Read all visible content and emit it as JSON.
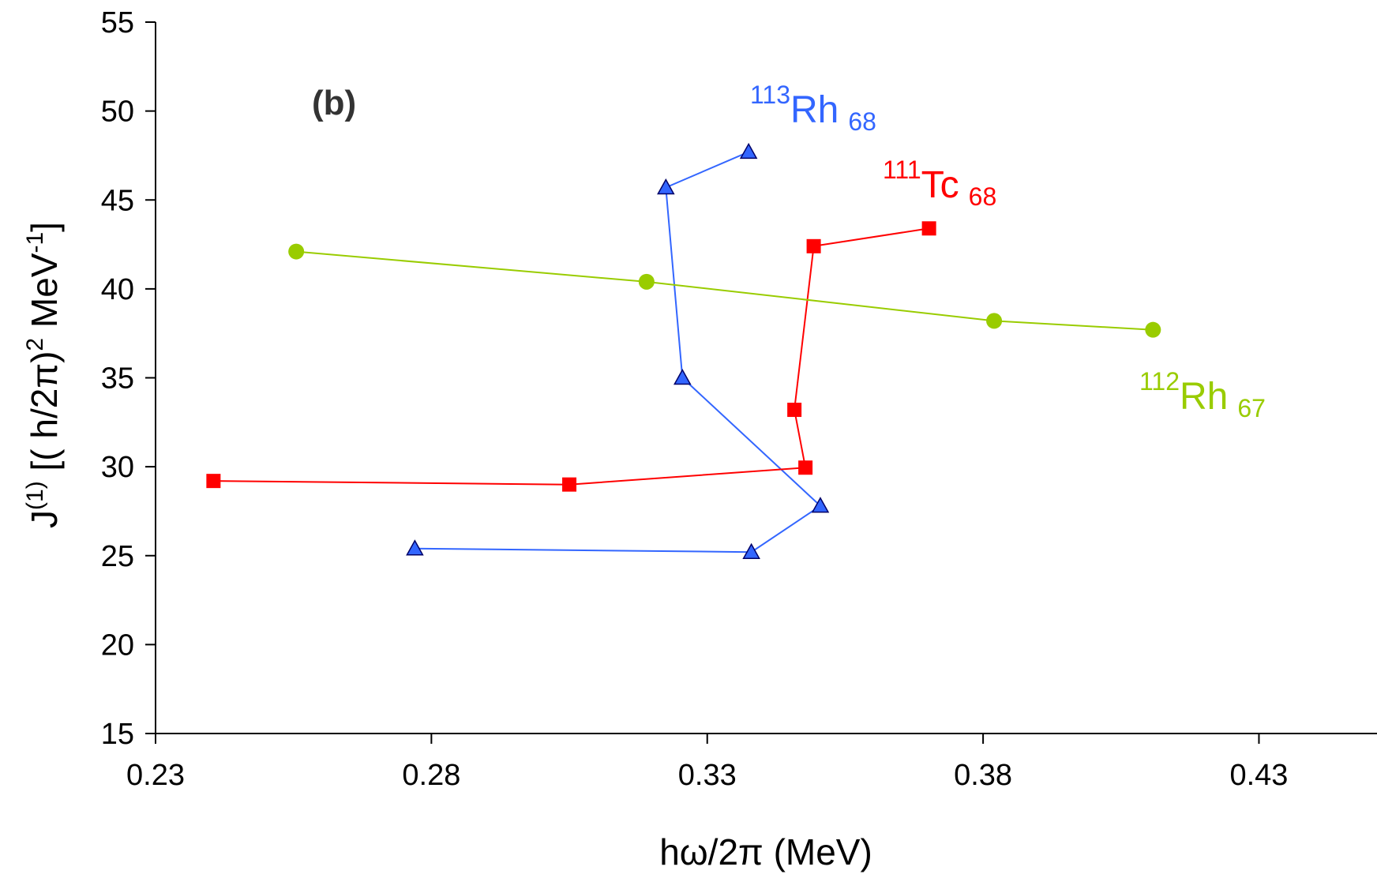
{
  "chart_data": {
    "type": "line",
    "panel_label": "(b)",
    "xlabel": {
      "main": "hω/2π (MeV)"
    },
    "ylabel": {
      "j": "J",
      "j_sup": "(1)",
      "a": " [( h/2π)",
      "a_sup": "2",
      "b": " MeV",
      "b_sup": "-1",
      "c": "]"
    },
    "xlim": [
      0.23,
      0.4514
    ],
    "ylim": [
      15,
      55
    ],
    "x_ticks": [
      0.23,
      0.28,
      0.33,
      0.38,
      0.43
    ],
    "x_tick_labels": [
      "0.23",
      "0.28",
      "0.33",
      "0.38",
      "0.43"
    ],
    "y_ticks": [
      15,
      20,
      25,
      30,
      35,
      40,
      45,
      50,
      55
    ],
    "y_tick_labels": [
      "15",
      "20",
      "25",
      "30",
      "35",
      "40",
      "45",
      "50",
      "55"
    ],
    "grid": false,
    "series": [
      {
        "name": "113Rh 68",
        "label": {
          "mass": "113",
          "element": "Rh",
          "sub": "68"
        },
        "color": "#3366ff",
        "marker": "triangle",
        "x": [
          0.277,
          0.338,
          0.3505,
          0.3255,
          0.3225,
          0.3375
        ],
        "y": [
          25.4,
          25.2,
          27.8,
          35.0,
          45.7,
          47.7
        ]
      },
      {
        "name": "111Tc 68",
        "label": {
          "mass": "111",
          "element": "Tc",
          "sub": "68"
        },
        "color": "#ff0000",
        "marker": "square",
        "x": [
          0.2405,
          0.305,
          0.3478,
          0.3458,
          0.3493,
          0.3702
        ],
        "y": [
          29.2,
          29.0,
          29.95,
          33.2,
          42.4,
          43.4
        ]
      },
      {
        "name": "112Rh 67",
        "label": {
          "mass": "112",
          "element": "Rh",
          "sub": "67"
        },
        "color": "#99cc00",
        "marker": "circle",
        "x": [
          0.2555,
          0.319,
          0.382,
          0.4108
        ],
        "y": [
          42.1,
          40.4,
          38.2,
          37.7
        ]
      }
    ]
  }
}
